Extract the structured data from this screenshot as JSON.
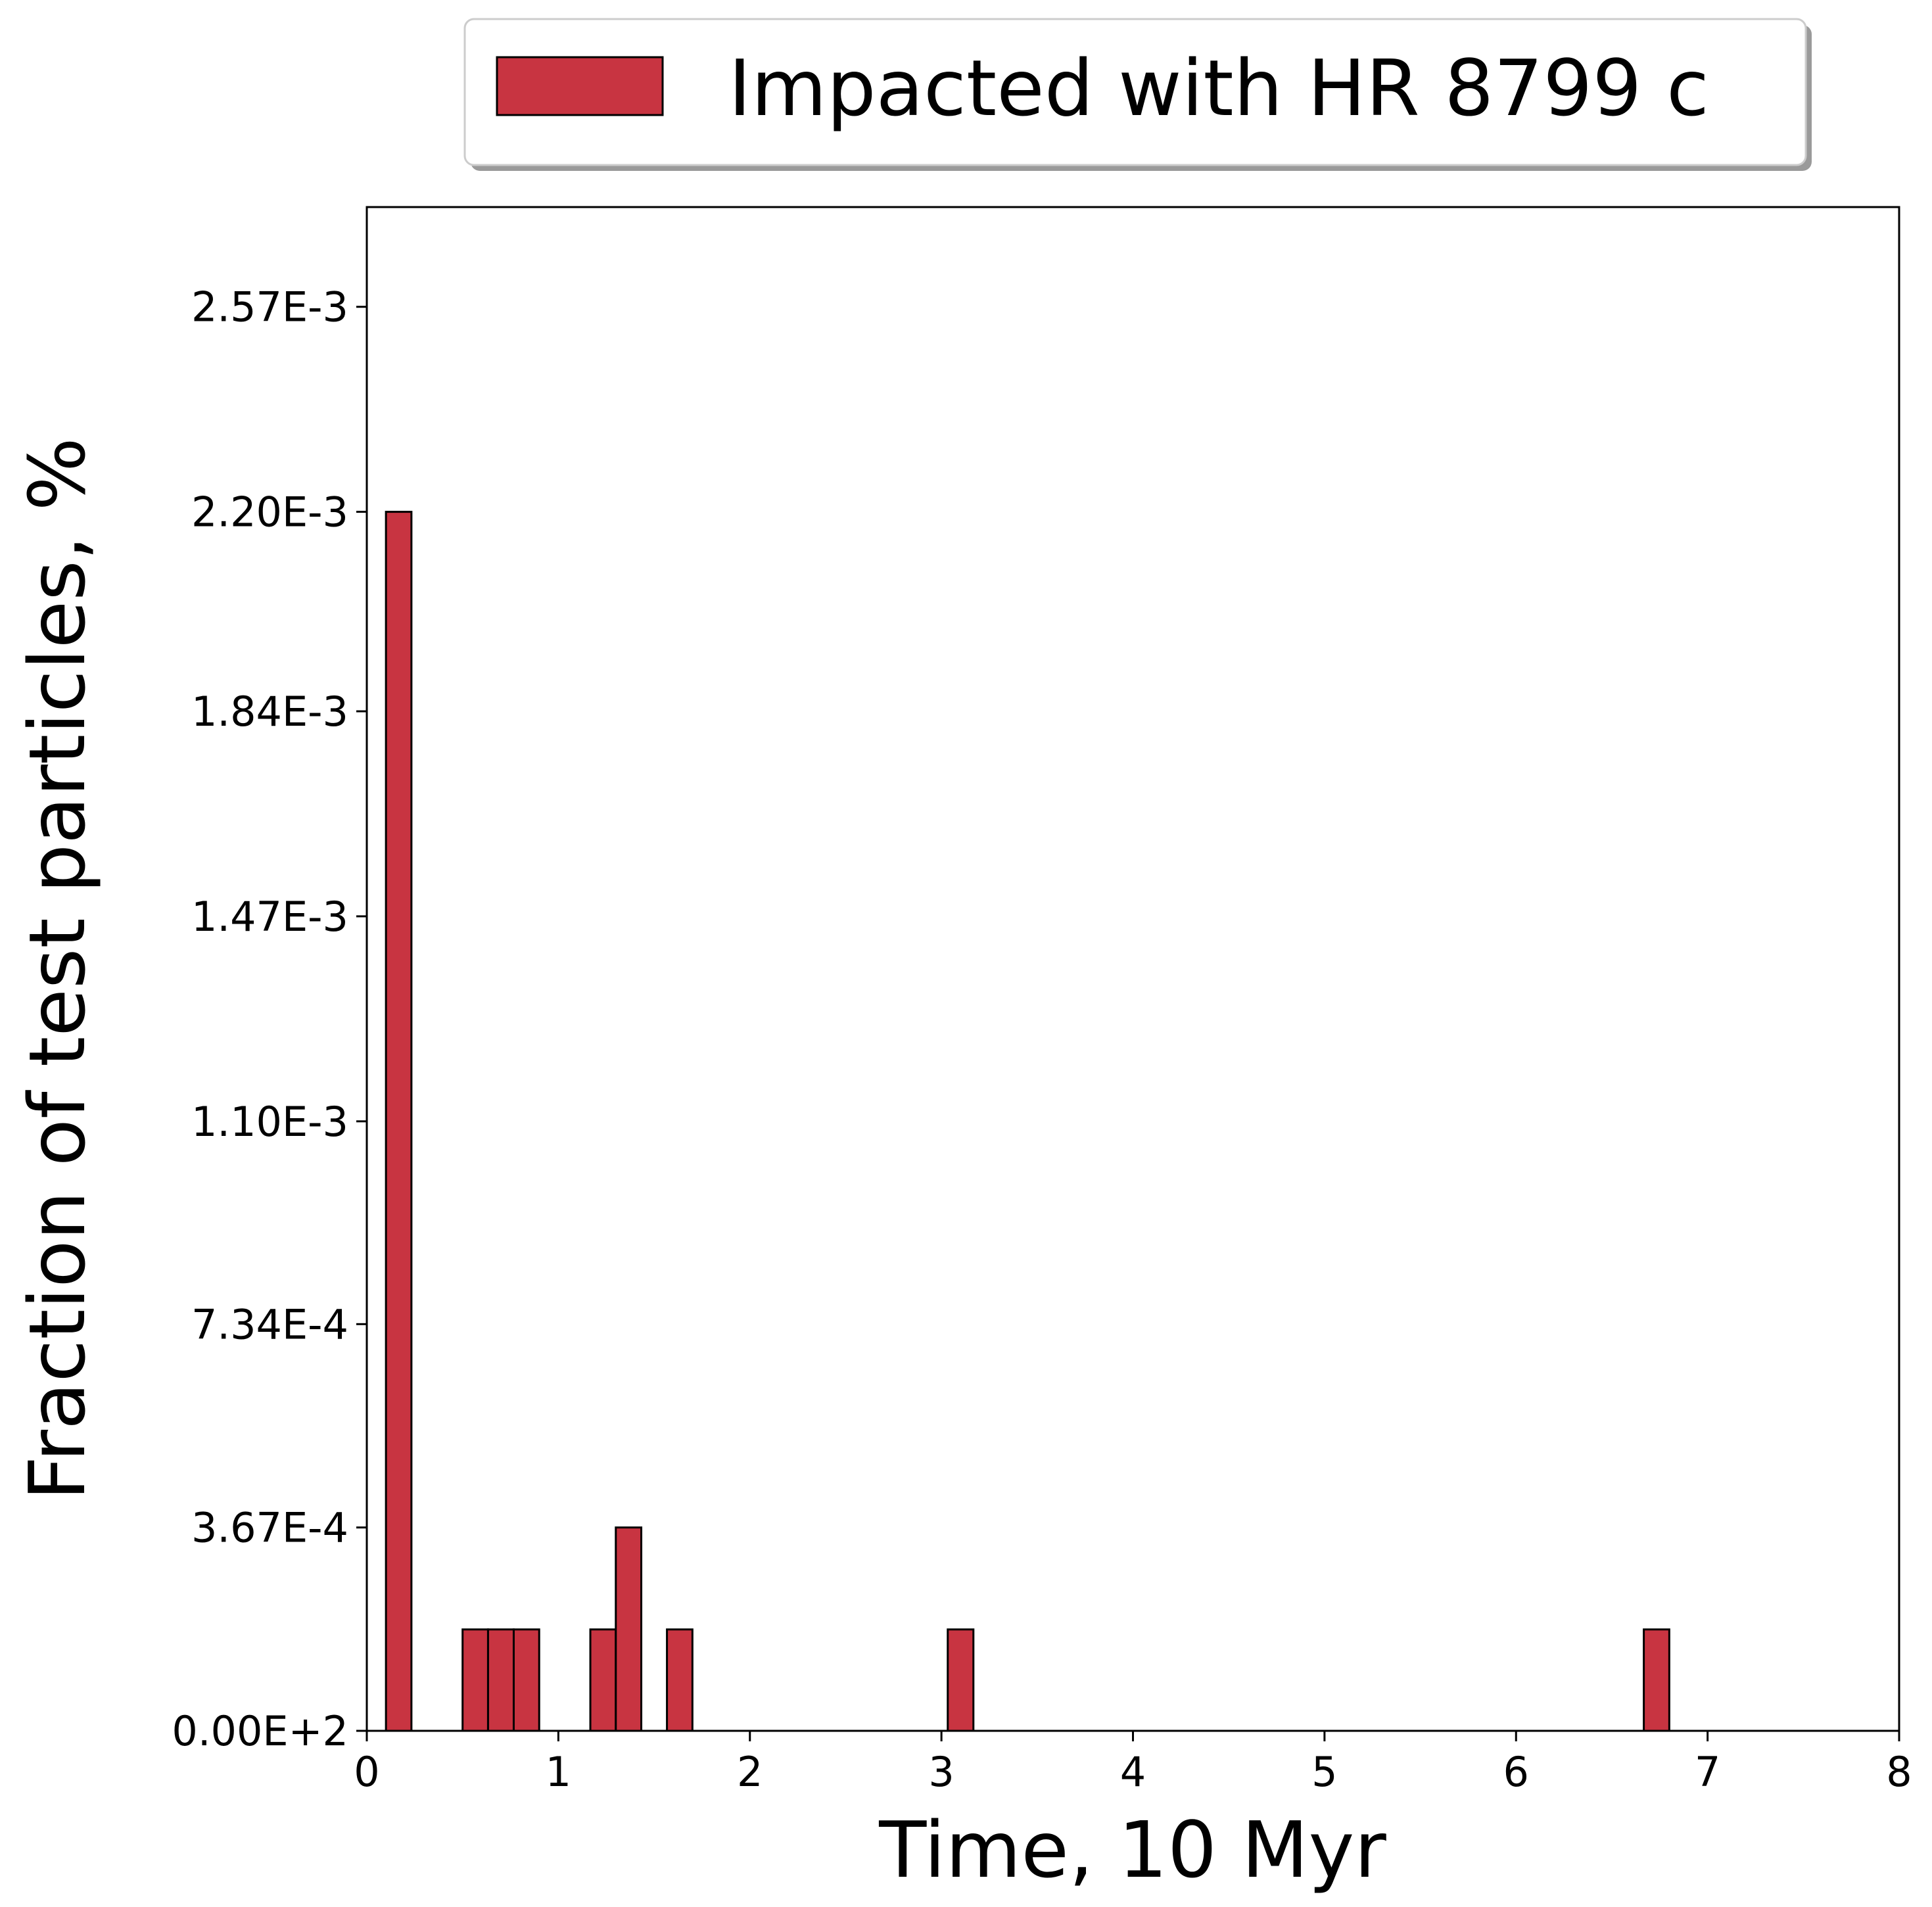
{
  "chart_data": {
    "type": "bar",
    "xlabel": "Time, 10 Myr",
    "ylabel": "Fraction of test particles, %",
    "xlim": [
      0,
      8
    ],
    "ylim": [
      0,
      0.00275
    ],
    "xticks": [
      0,
      1,
      2,
      3,
      4,
      5,
      6,
      7,
      8
    ],
    "xtick_labels": [
      "0",
      "1",
      "2",
      "3",
      "4",
      "5",
      "6",
      "7",
      "8"
    ],
    "yticks": [
      0,
      0.000367,
      0.000734,
      0.0011,
      0.00147,
      0.00184,
      0.0022,
      0.00257
    ],
    "ytick_labels": [
      "0.00E+2",
      "3.67E-4",
      "7.34E-4",
      "1.10E-3",
      "1.47E-3",
      "1.84E-3",
      "2.20E-3",
      "2.57E-3"
    ],
    "grid": false,
    "legend_position": "top-center, outside plot",
    "series": [
      {
        "name": "Impacted with HR 8799 c",
        "color": "#c83441",
        "edge_color": "#000000",
        "bins": [
          {
            "start": 0.1,
            "end": 0.233,
            "value": 0.0022
          },
          {
            "start": 0.5,
            "end": 0.633,
            "value": 0.000183
          },
          {
            "start": 0.633,
            "end": 0.767,
            "value": 0.000183
          },
          {
            "start": 0.767,
            "end": 0.9,
            "value": 0.000183
          },
          {
            "start": 1.167,
            "end": 1.3,
            "value": 0.000183
          },
          {
            "start": 1.3,
            "end": 1.433,
            "value": 0.000367
          },
          {
            "start": 1.567,
            "end": 1.7,
            "value": 0.000183
          },
          {
            "start": 3.033,
            "end": 3.167,
            "value": 0.000183
          },
          {
            "start": 6.667,
            "end": 6.8,
            "value": 0.000183
          }
        ]
      }
    ]
  }
}
